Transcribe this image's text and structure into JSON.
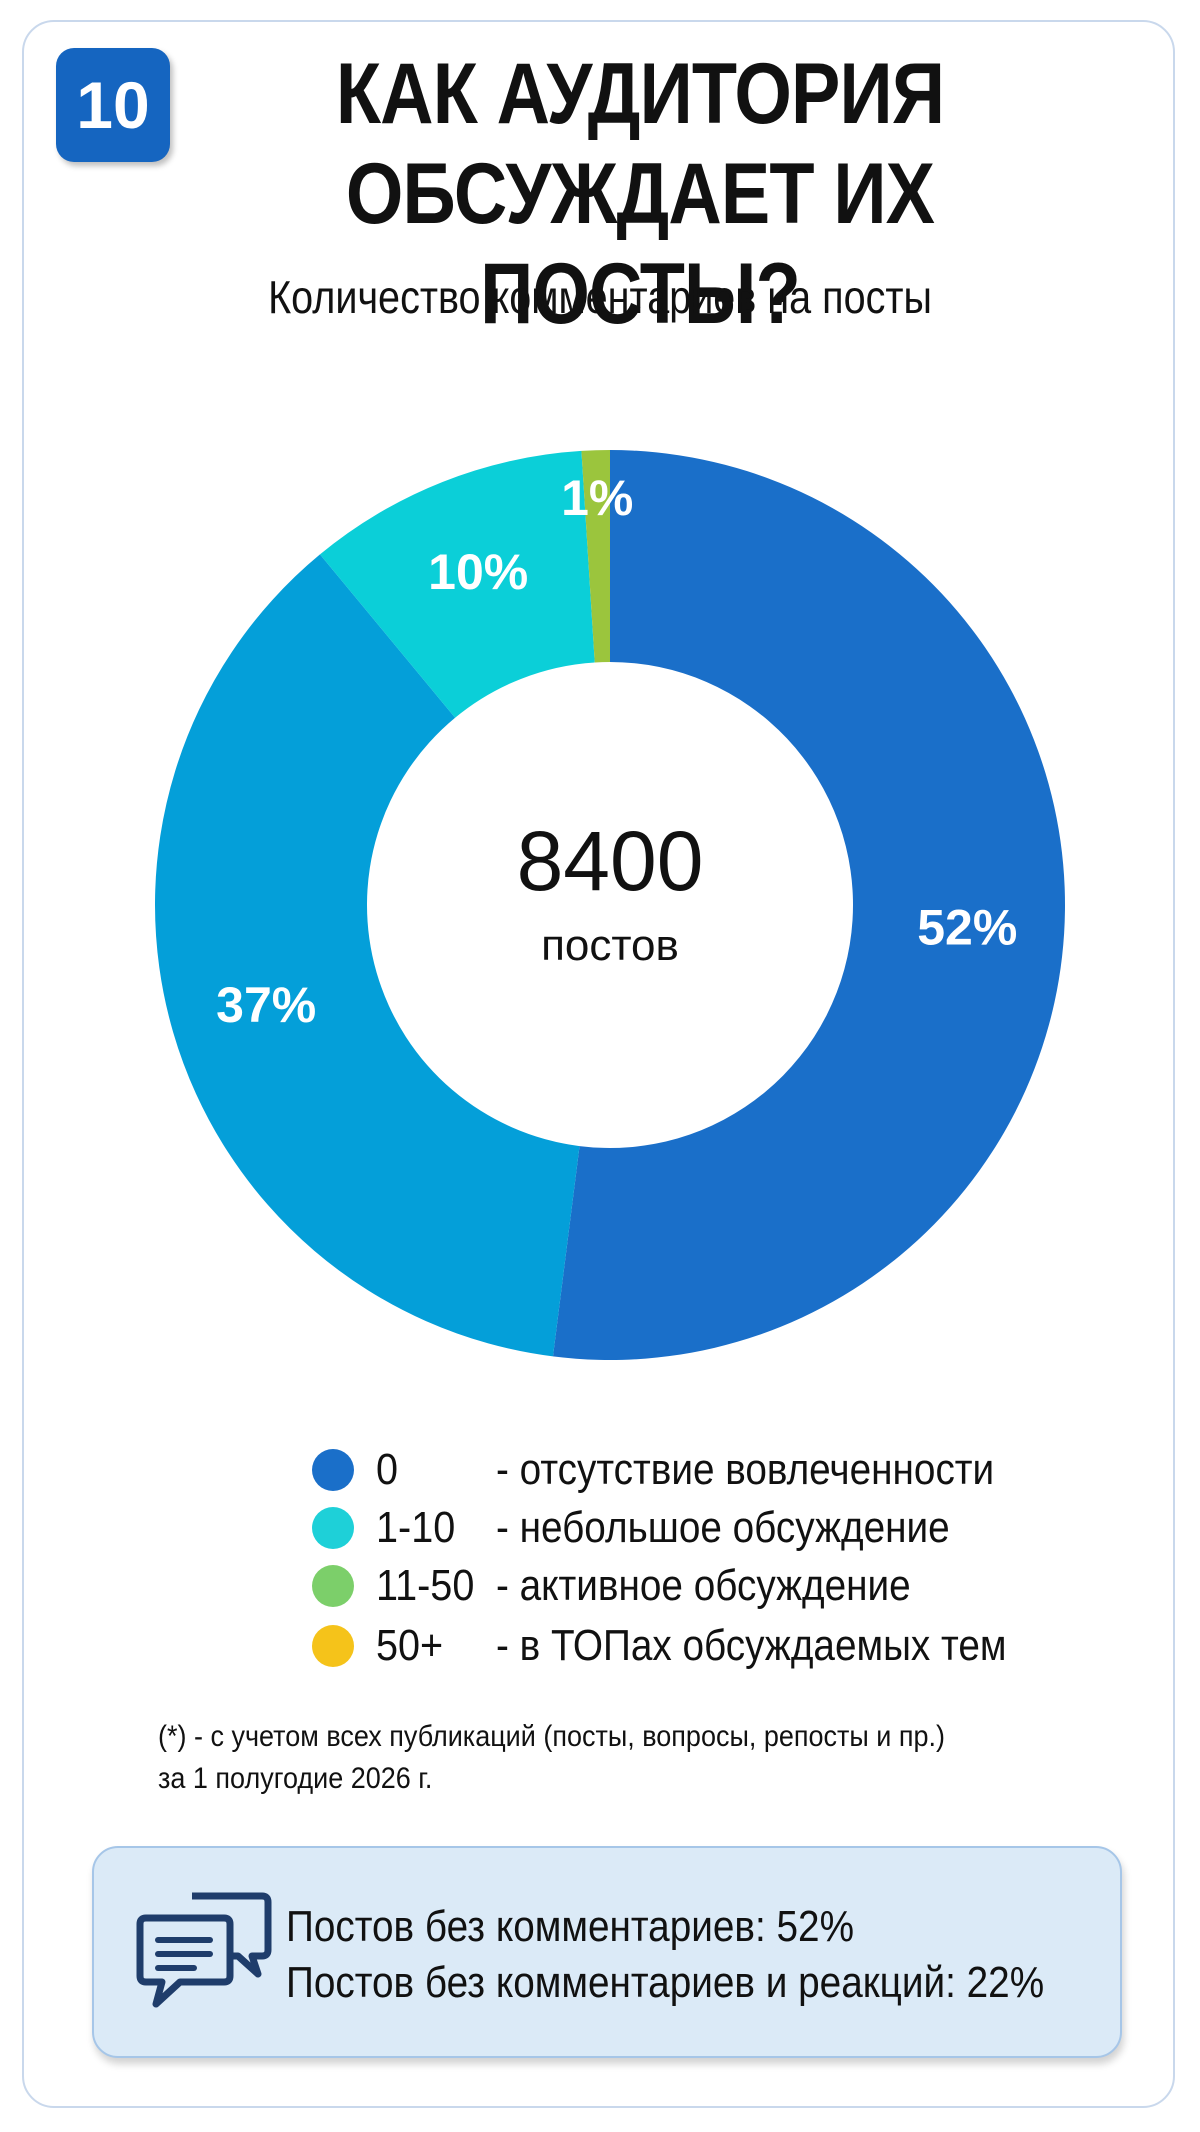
{
  "badge": {
    "number": "10"
  },
  "title": {
    "line1": "КАК АУДИТОРИЯ",
    "line2": "ОБСУЖДАЕТ ИХ ПОСТЫ?"
  },
  "subtitle": "Количество комментариев на посты",
  "chart_data": {
    "type": "pie",
    "title": "Количество комментариев на посты",
    "center": {
      "value": "8400",
      "label": "постов"
    },
    "categories": [
      "0",
      "1-10",
      "11-50",
      "50+"
    ],
    "values": [
      52,
      37,
      10,
      1
    ],
    "value_labels": [
      "52%",
      "37%",
      "10%",
      "1%"
    ],
    "colors": [
      "#1a6fc9",
      "#049fd9",
      "#0bcfd8",
      "#9bc53d"
    ]
  },
  "legend": [
    {
      "range": "0",
      "desc": "- отсутствие вовлеченности",
      "color": "#1a6fc9"
    },
    {
      "range": "1-10",
      "desc": "- небольшое обсуждение",
      "color": "#1ed0d8"
    },
    {
      "range": "11-50",
      "desc": "- активное обсуждение",
      "color": "#7ccf6a"
    },
    {
      "range": "50+",
      "desc": "- в ТОПах обсуждаемых тем",
      "color": "#f5c31a"
    }
  ],
  "footnote": {
    "line1": "(*) - с учетом всех публикаций (посты, вопросы, репосты и пр.)",
    "line2": "за 1 полугодие 2026 г."
  },
  "summary": {
    "icon": "chat-bubbles-icon",
    "line1": "Постов без комментариев: 52%",
    "line2": "Постов без комментариев и реакций: 22%"
  }
}
